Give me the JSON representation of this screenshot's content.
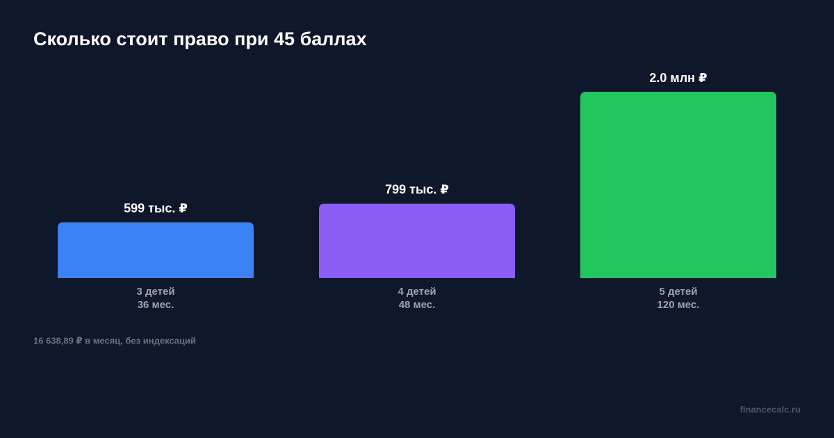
{
  "chart_data": {
    "type": "bar",
    "title": "Сколько стоит право при 45 баллах",
    "categories": [
      "3 детей",
      "4 детей",
      "5 детей"
    ],
    "sublabels": [
      "36 мес.",
      "48 мес.",
      "120 мес."
    ],
    "values": [
      599000,
      799000,
      2000000
    ],
    "value_labels": [
      "599 тыс. ₽",
      "799 тыс. ₽",
      "2.0 млн ₽"
    ],
    "colors": [
      "#3b82f6",
      "#8b5cf6",
      "#22c55e"
    ],
    "note": "16 638,89 ₽ в месяц, без индексаций",
    "source": "financecalc.ru"
  }
}
